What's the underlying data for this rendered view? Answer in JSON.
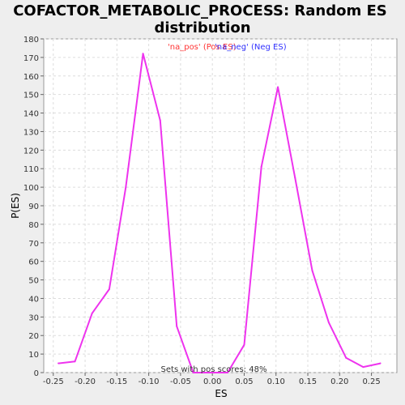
{
  "chart_data": {
    "type": "line",
    "title": "COFACTOR_METABOLIC_PROCESS: Random ES distribution",
    "title_lines": [
      "COFACTOR_METABOLIC_PROCESS: Random ES",
      "distribution"
    ],
    "xlabel": "ES",
    "ylabel": "P(ES)",
    "xlim": [
      -0.265,
      0.29
    ],
    "ylim": [
      0,
      180
    ],
    "x_ticks": [
      -0.25,
      -0.2,
      -0.15,
      -0.1,
      -0.05,
      0.0,
      0.05,
      0.1,
      0.15,
      0.2,
      0.25
    ],
    "x_tick_labels": [
      "-0.25",
      "-0.20",
      "-0.15",
      "-0.10",
      "-0.05",
      "0.00",
      "0.05",
      "0.10",
      "0.15",
      "0.20",
      "0.25"
    ],
    "y_ticks": [
      0,
      10,
      20,
      30,
      40,
      50,
      60,
      70,
      80,
      90,
      100,
      110,
      120,
      130,
      140,
      150,
      160,
      170,
      180
    ],
    "grid": true,
    "legend": [
      {
        "label": "'na_pos' (Pos ES)",
        "color": "#ff3333"
      },
      {
        "label": "'na_neg' (Neg ES)",
        "color": "#3333ff"
      }
    ],
    "annotation": "Sets with pos scores: 48%",
    "series": [
      {
        "color": "#ee33ee",
        "x": [
          -0.242,
          -0.216,
          -0.189,
          -0.162,
          -0.136,
          -0.109,
          -0.082,
          -0.056,
          -0.03,
          -0.003,
          0.024,
          0.05,
          0.077,
          0.103,
          0.13,
          0.157,
          0.183,
          0.21,
          0.237,
          0.264
        ],
        "y": [
          5,
          6,
          32,
          45,
          100,
          172,
          136,
          25,
          0,
          0,
          0,
          15,
          111,
          154,
          105,
          55,
          27,
          8,
          3,
          5
        ]
      }
    ]
  }
}
